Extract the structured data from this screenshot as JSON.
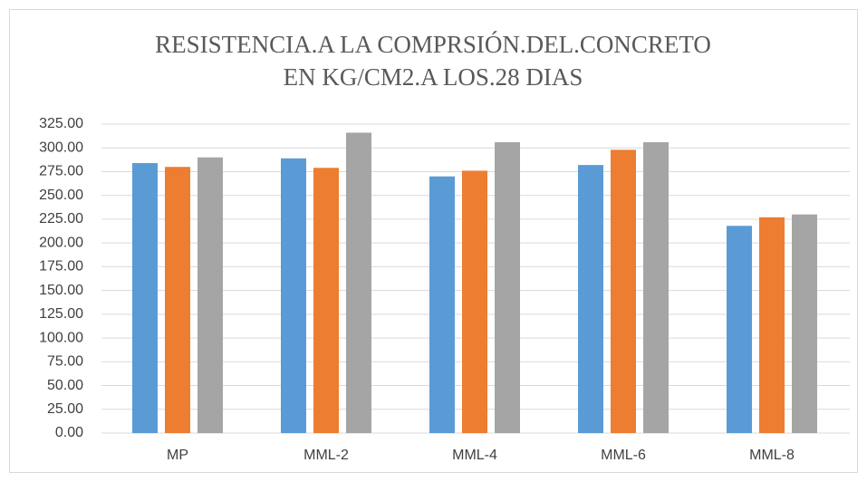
{
  "chart_data": {
    "type": "bar",
    "title": [
      "RESISTENCIA.A LA COMPRSIÓN.DEL.CONCRETO",
      "EN KG/CM2.A LOS.28 DIAS"
    ],
    "categories": [
      "MP",
      "MML-2",
      "MML-4",
      "MML-6",
      "MML-8"
    ],
    "series": [
      {
        "color": "#5b9bd5",
        "values": [
          284,
          289,
          270,
          282,
          218
        ]
      },
      {
        "color": "#ed7d31",
        "values": [
          280,
          279,
          276,
          298,
          227
        ]
      },
      {
        "color": "#a5a5a5",
        "values": [
          290,
          316,
          306,
          306,
          230
        ]
      }
    ],
    "ylim": [
      0,
      325
    ],
    "yticks": [
      {
        "value": 0,
        "label": "0.00"
      },
      {
        "value": 25,
        "label": "25.00"
      },
      {
        "value": 50,
        "label": "50.00"
      },
      {
        "value": 75,
        "label": "75.00"
      },
      {
        "value": 100,
        "label": "100.00"
      },
      {
        "value": 125,
        "label": "125.00"
      },
      {
        "value": 150,
        "label": "150.00"
      },
      {
        "value": 175,
        "label": "175.00"
      },
      {
        "value": 200,
        "label": "200.00"
      },
      {
        "value": 225,
        "label": "225.00"
      },
      {
        "value": 250,
        "label": "250.00"
      },
      {
        "value": 275,
        "label": "275.00"
      },
      {
        "value": 300,
        "label": "300.00"
      },
      {
        "value": 325,
        "label": "325.00"
      }
    ],
    "grid": true
  }
}
